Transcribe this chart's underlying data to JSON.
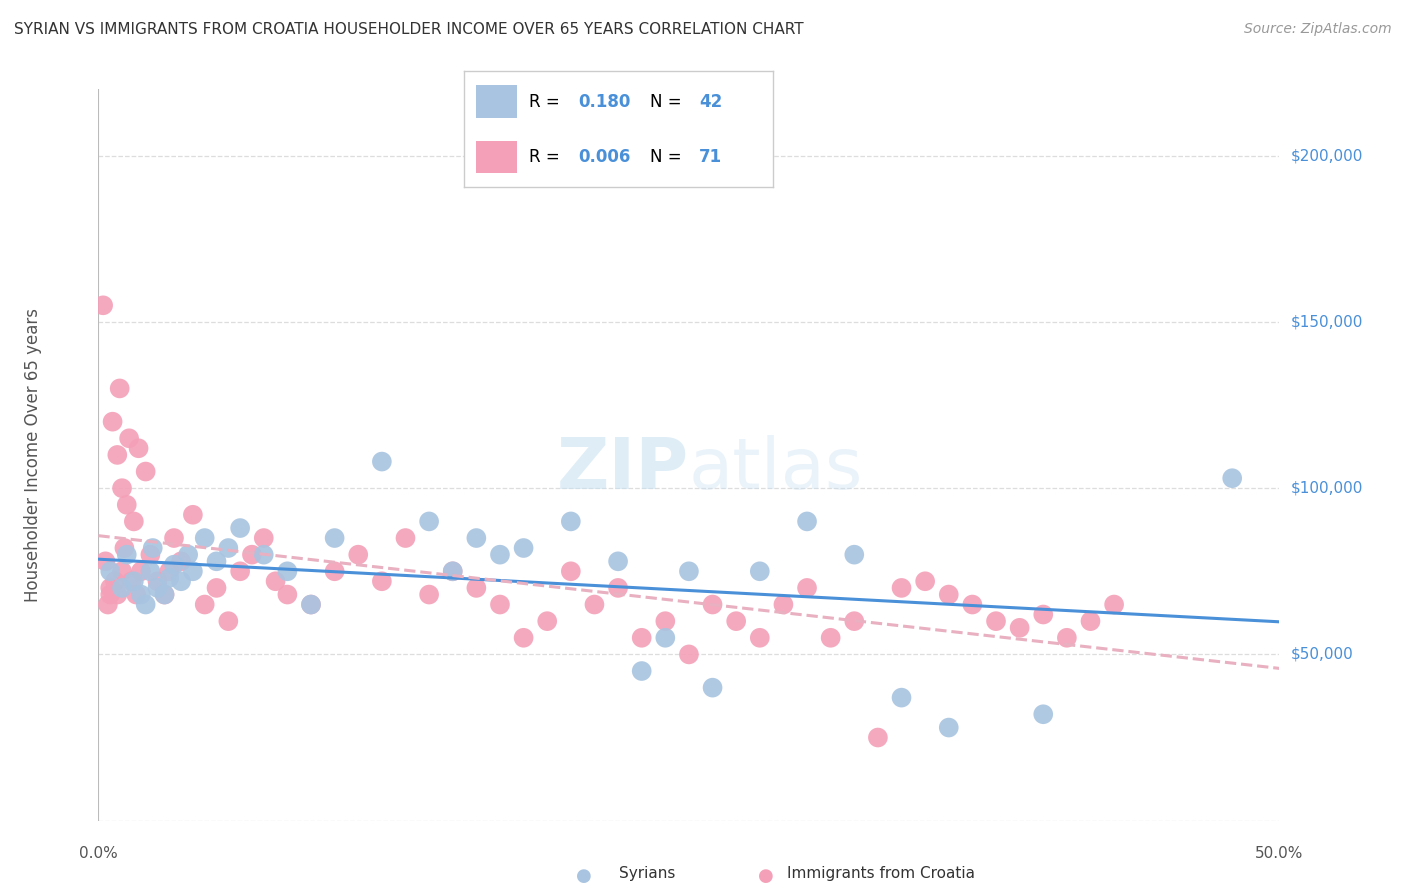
{
  "title": "SYRIAN VS IMMIGRANTS FROM CROATIA HOUSEHOLDER INCOME OVER 65 YEARS CORRELATION CHART",
  "source": "Source: ZipAtlas.com",
  "ylabel": "Householder Income Over 65 years",
  "xmin": 0.0,
  "xmax": 50.0,
  "ymin": 0,
  "ymax": 220000,
  "yticks": [
    0,
    50000,
    100000,
    150000,
    200000
  ],
  "ytick_labels": [
    "",
    "$50,000",
    "$100,000",
    "$150,000",
    "$200,000"
  ],
  "syrians_label": "Syrians",
  "croatia_label": "Immigrants from Croatia",
  "color_syrian": "#a8c4e0",
  "color_croatia": "#f4a0b8",
  "color_trend_syrian": "#4a90d9",
  "color_trend_croatia": "#e8b0c0",
  "background_color": "#ffffff",
  "grid_color": "#dddddd",
  "title_color": "#333333",
  "axis_label_color": "#555555",
  "syrian_scatter_x": [
    0.5,
    1.0,
    1.2,
    1.5,
    1.8,
    2.0,
    2.2,
    2.3,
    2.5,
    2.8,
    3.0,
    3.2,
    3.5,
    3.8,
    4.0,
    4.5,
    5.0,
    5.5,
    6.0,
    7.0,
    8.0,
    9.0,
    10.0,
    12.0,
    14.0,
    15.0,
    16.0,
    17.0,
    18.0,
    20.0,
    22.0,
    23.0,
    24.0,
    25.0,
    26.0,
    28.0,
    30.0,
    32.0,
    34.0,
    36.0,
    40.0,
    48.0
  ],
  "syrian_scatter_y": [
    75000,
    70000,
    80000,
    72000,
    68000,
    65000,
    75000,
    82000,
    70000,
    68000,
    73000,
    77000,
    72000,
    80000,
    75000,
    85000,
    78000,
    82000,
    88000,
    80000,
    75000,
    65000,
    85000,
    108000,
    90000,
    75000,
    85000,
    80000,
    82000,
    90000,
    78000,
    45000,
    55000,
    75000,
    40000,
    75000,
    90000,
    80000,
    37000,
    28000,
    32000,
    103000
  ],
  "croatia_scatter_x": [
    0.2,
    0.3,
    0.4,
    0.5,
    0.5,
    0.6,
    0.7,
    0.8,
    0.8,
    0.9,
    1.0,
    1.0,
    1.1,
    1.2,
    1.3,
    1.4,
    1.5,
    1.6,
    1.7,
    1.8,
    2.0,
    2.2,
    2.5,
    2.8,
    3.0,
    3.2,
    3.5,
    4.0,
    4.5,
    5.0,
    5.5,
    6.0,
    6.5,
    7.0,
    7.5,
    8.0,
    9.0,
    10.0,
    11.0,
    12.0,
    13.0,
    14.0,
    15.0,
    16.0,
    17.0,
    18.0,
    19.0,
    20.0,
    21.0,
    22.0,
    23.0,
    24.0,
    25.0,
    26.0,
    27.0,
    28.0,
    29.0,
    30.0,
    31.0,
    32.0,
    33.0,
    34.0,
    35.0,
    36.0,
    37.0,
    38.0,
    39.0,
    40.0,
    41.0,
    42.0,
    43.0
  ],
  "croatia_scatter_y": [
    155000,
    78000,
    65000,
    70000,
    68000,
    120000,
    72000,
    110000,
    68000,
    130000,
    75000,
    100000,
    82000,
    95000,
    115000,
    72000,
    90000,
    68000,
    112000,
    75000,
    105000,
    80000,
    72000,
    68000,
    75000,
    85000,
    78000,
    92000,
    65000,
    70000,
    60000,
    75000,
    80000,
    85000,
    72000,
    68000,
    65000,
    75000,
    80000,
    72000,
    85000,
    68000,
    75000,
    70000,
    65000,
    55000,
    60000,
    75000,
    65000,
    70000,
    55000,
    60000,
    50000,
    65000,
    60000,
    55000,
    65000,
    70000,
    55000,
    60000,
    25000,
    70000,
    72000,
    68000,
    65000,
    60000,
    58000,
    62000,
    55000,
    60000,
    65000
  ]
}
